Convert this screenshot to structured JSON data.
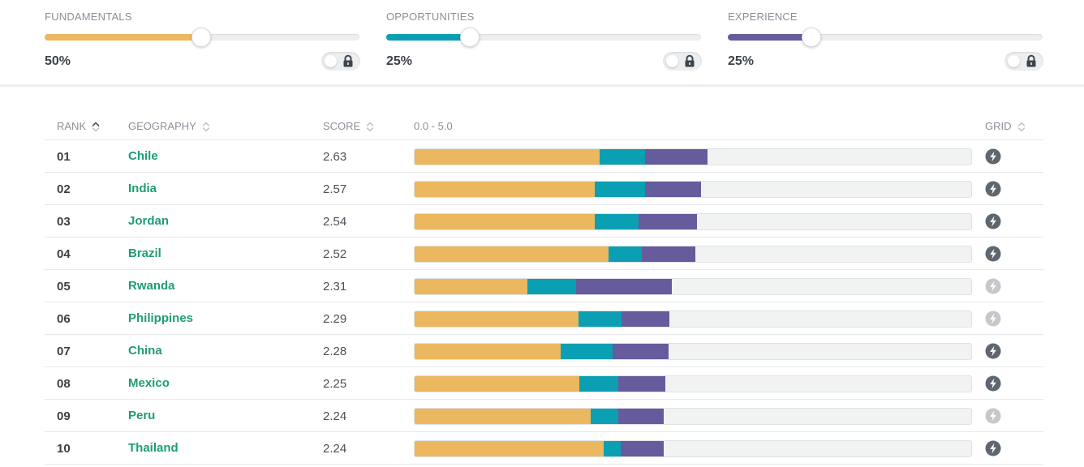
{
  "colors": {
    "fundamentals": "#ebb85f",
    "opportunities": "#0b9fb3",
    "experience": "#665b9c",
    "geography_link": "#1e9c77",
    "grid_active": "#5f666e",
    "grid_inactive": "#c4c8cc"
  },
  "weights": [
    {
      "title": "FUNDAMENTALS",
      "value_label": "50%",
      "level": 0.5,
      "color": "#ebb85f",
      "locked": true
    },
    {
      "title": "OPPORTUNITIES",
      "value_label": "25%",
      "level": 0.25,
      "color": "#0b9fb3",
      "locked": true
    },
    {
      "title": "EXPERIENCE",
      "value_label": "25%",
      "level": 0.25,
      "color": "#665b9c",
      "locked": true
    }
  ],
  "table": {
    "headers": {
      "rank": "RANK",
      "geography": "GEOGRAPHY",
      "score": "SCORE",
      "range": "0.0 - 5.0",
      "grid": "GRID"
    },
    "scale_max": 5.0,
    "rows": [
      {
        "rank": "01",
        "geography": "Chile",
        "score": "2.63",
        "fundamentals": 1.66,
        "opportunities": 0.41,
        "experience": 0.56,
        "grid_active": true
      },
      {
        "rank": "02",
        "geography": "India",
        "score": "2.57",
        "fundamentals": 1.62,
        "opportunities": 0.45,
        "experience": 0.5,
        "grid_active": true
      },
      {
        "rank": "03",
        "geography": "Jordan",
        "score": "2.54",
        "fundamentals": 1.62,
        "opportunities": 0.39,
        "experience": 0.53,
        "grid_active": true
      },
      {
        "rank": "04",
        "geography": "Brazil",
        "score": "2.52",
        "fundamentals": 1.74,
        "opportunities": 0.3,
        "experience": 0.48,
        "grid_active": true
      },
      {
        "rank": "05",
        "geography": "Rwanda",
        "score": "2.31",
        "fundamentals": 1.01,
        "opportunities": 0.44,
        "experience": 0.86,
        "grid_active": false
      },
      {
        "rank": "06",
        "geography": "Philippines",
        "score": "2.29",
        "fundamentals": 1.47,
        "opportunities": 0.39,
        "experience": 0.43,
        "grid_active": false
      },
      {
        "rank": "07",
        "geography": "China",
        "score": "2.28",
        "fundamentals": 1.31,
        "opportunities": 0.47,
        "experience": 0.5,
        "grid_active": true
      },
      {
        "rank": "08",
        "geography": "Mexico",
        "score": "2.25",
        "fundamentals": 1.48,
        "opportunities": 0.35,
        "experience": 0.42,
        "grid_active": true
      },
      {
        "rank": "09",
        "geography": "Peru",
        "score": "2.24",
        "fundamentals": 1.58,
        "opportunities": 0.25,
        "experience": 0.41,
        "grid_active": false
      },
      {
        "rank": "10",
        "geography": "Thailand",
        "score": "2.24",
        "fundamentals": 1.7,
        "opportunities": 0.15,
        "experience": 0.39,
        "grid_active": true
      }
    ]
  }
}
